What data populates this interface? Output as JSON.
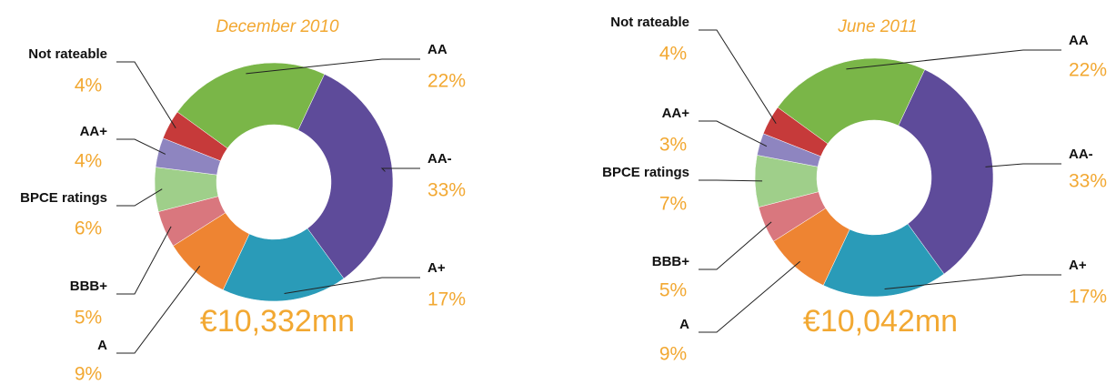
{
  "chart_data": [
    {
      "type": "donut",
      "title": "December 2010",
      "total": "€10,332mn",
      "categories": [
        "AA",
        "AA-",
        "A+",
        "A",
        "BBB+",
        "BPCE ratings",
        "AA+",
        "Not rateable"
      ],
      "values": [
        22,
        33,
        17,
        9,
        5,
        6,
        4,
        4
      ],
      "value_labels": [
        "22%",
        "33%",
        "17%",
        "9%",
        "5%",
        "6%",
        "4%",
        "4%"
      ],
      "colors": [
        "#7ab648",
        "#5e4b9a",
        "#2a9bb8",
        "#ee8432",
        "#d9777e",
        "#9fcf8a",
        "#8e85c0",
        "#c63a3a"
      ]
    },
    {
      "type": "donut",
      "title": "June 2011",
      "total": "€10,042mn",
      "categories": [
        "AA",
        "AA-",
        "A+",
        "A",
        "BBB+",
        "BPCE ratings",
        "AA+",
        "Not rateable"
      ],
      "values": [
        22,
        33,
        17,
        9,
        5,
        7,
        3,
        4
      ],
      "value_labels": [
        "22%",
        "33%",
        "17%",
        "9%",
        "5%",
        "7%",
        "3%",
        "4%"
      ],
      "colors": [
        "#7ab648",
        "#5e4b9a",
        "#2a9bb8",
        "#ee8432",
        "#d9777e",
        "#9fcf8a",
        "#8e85c0",
        "#c63a3a"
      ]
    }
  ]
}
